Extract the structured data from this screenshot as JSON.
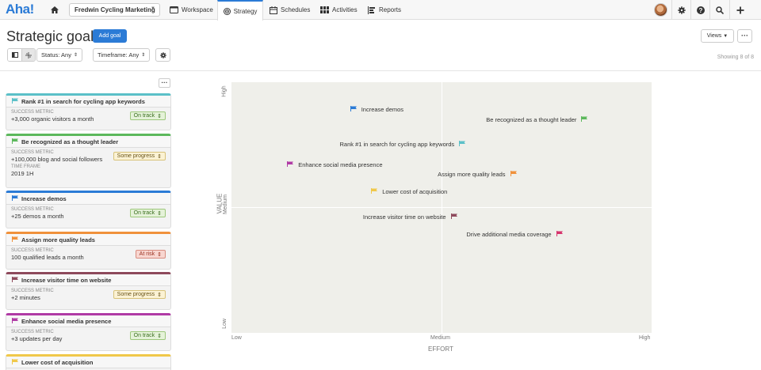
{
  "app": {
    "logo": "Aha!",
    "workspace": "Fredwin Cycling Marketing"
  },
  "nav": {
    "tabs": [
      {
        "label": "Workspace",
        "icon": "monitor-icon"
      },
      {
        "label": "Strategy",
        "icon": "target-icon",
        "active": true
      },
      {
        "label": "Schedules",
        "icon": "calendar-icon"
      },
      {
        "label": "Activities",
        "icon": "grid-icon"
      },
      {
        "label": "Reports",
        "icon": "report-icon"
      }
    ]
  },
  "header": {
    "title": "Strategic goals",
    "add_button": "Add goal",
    "views_button": "Views",
    "more_button": "···",
    "showing": "Showing 8 of 8"
  },
  "filters": {
    "status": "Status: Any",
    "timeframe": "Timeframe: Any"
  },
  "colors": {
    "teal": "#5bc0c8",
    "green": "#5cb85c",
    "blue": "#2b7bd6",
    "orange": "#f0913b",
    "maroon": "#8e4a5c",
    "magenta": "#b03aa5",
    "yellow": "#f0c84a"
  },
  "list_more": "···",
  "goals": [
    {
      "name": "Rank #1 in search for cycling app keywords",
      "metric_label": "SUCCESS METRIC",
      "metric": "+3,000 organic visitors a month",
      "status": "On track",
      "status_kind": "track",
      "color": "#5bc0c8"
    },
    {
      "name": "Be recognized as a thought leader",
      "metric_label": "SUCCESS METRIC",
      "metric": "+100,000 blog and social followers",
      "status": "Some progress",
      "status_kind": "progress",
      "color": "#5cb85c",
      "timeframe_label": "TIME FRAME",
      "timeframe": "2019 1H"
    },
    {
      "name": "Increase demos",
      "metric_label": "SUCCESS METRIC",
      "metric": "+25 demos a month",
      "status": "On track",
      "status_kind": "track",
      "color": "#2b7bd6"
    },
    {
      "name": "Assign more quality leads",
      "metric_label": "SUCCESS METRIC",
      "metric": "100 qualified leads a month",
      "status": "At risk",
      "status_kind": "risk",
      "color": "#f0913b"
    },
    {
      "name": "Increase visitor time on website",
      "metric_label": "SUCCESS METRIC",
      "metric": "+2 minutes",
      "status": "Some progress",
      "status_kind": "progress",
      "color": "#8e4a5c"
    },
    {
      "name": "Enhance social media presence",
      "metric_label": "SUCCESS METRIC",
      "metric": "+3 updates per day",
      "status": "On track",
      "status_kind": "track",
      "color": "#b03aa5"
    },
    {
      "name": "Lower cost of acquisition",
      "color": "#f0c84a"
    }
  ],
  "chart_data": {
    "type": "scatter",
    "xlabel": "EFFORT",
    "ylabel": "VALUE",
    "x_ticks": [
      "Low",
      "Medium",
      "High"
    ],
    "y_ticks": [
      "Low",
      "Medium",
      "High"
    ],
    "xlim": [
      0,
      1
    ],
    "ylim": [
      0,
      1
    ],
    "points": [
      {
        "name": "Increase demos",
        "x": 0.29,
        "y": 0.89,
        "color": "#2b7bd6",
        "flag_side": "left"
      },
      {
        "name": "Be recognized as a thought leader",
        "x": 0.84,
        "y": 0.85,
        "color": "#5cb85c",
        "flag_side": "right"
      },
      {
        "name": "Rank #1 in search for cycling app keywords",
        "x": 0.55,
        "y": 0.75,
        "color": "#5bc0c8",
        "flag_side": "right"
      },
      {
        "name": "Enhance social media presence",
        "x": 0.14,
        "y": 0.67,
        "color": "#b03aa5",
        "flag_side": "left"
      },
      {
        "name": "Assign more quality leads",
        "x": 0.67,
        "y": 0.63,
        "color": "#f0913b",
        "flag_side": "right"
      },
      {
        "name": "Lower cost of acquisition",
        "x": 0.34,
        "y": 0.56,
        "color": "#f0c84a",
        "flag_side": "left"
      },
      {
        "name": "Increase visitor time on website",
        "x": 0.53,
        "y": 0.46,
        "color": "#8e4a5c",
        "flag_side": "right"
      },
      {
        "name": "Drive additional media coverage",
        "x": 0.78,
        "y": 0.39,
        "color": "#d6336c",
        "flag_side": "right"
      }
    ]
  }
}
